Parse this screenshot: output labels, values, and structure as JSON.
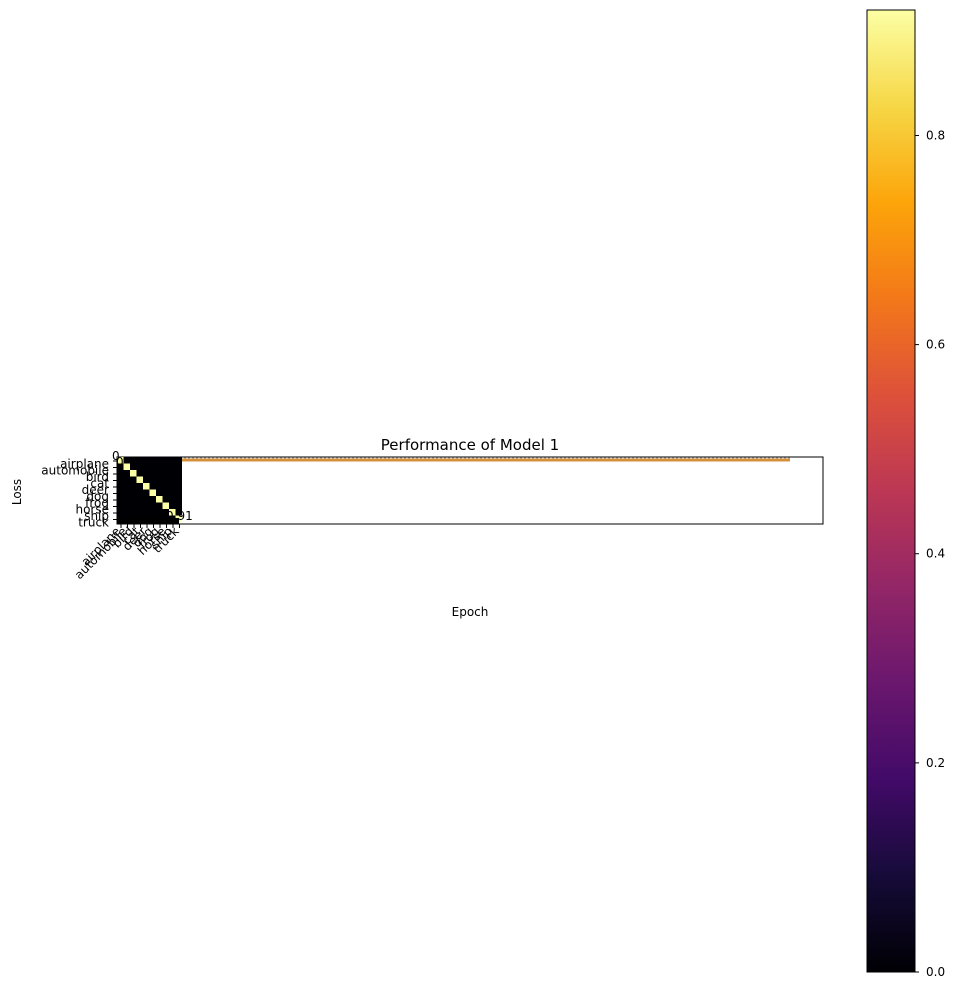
{
  "chart_data": [
    {
      "type": "heatmap",
      "colormap": "inferno",
      "classes": [
        "airplane",
        "automobile",
        "bird",
        "cat",
        "deer",
        "dog",
        "frog",
        "horse",
        "ship",
        "truck"
      ],
      "cell_labels": {
        "top_partial": "0",
        "diag_partial": "0",
        "last_diag_value": "0.91"
      },
      "colorbar": {
        "min": 0.0,
        "max": 0.92,
        "ticks": [
          "0.0",
          "0.2",
          "0.4",
          "0.6",
          "0.8"
        ]
      }
    },
    {
      "type": "line",
      "title": "Performance of Model 1",
      "xlabel": "Epoch",
      "ylabel": "Loss",
      "series_colors": [
        "#d4903a",
        "#a0a0a0"
      ]
    }
  ]
}
